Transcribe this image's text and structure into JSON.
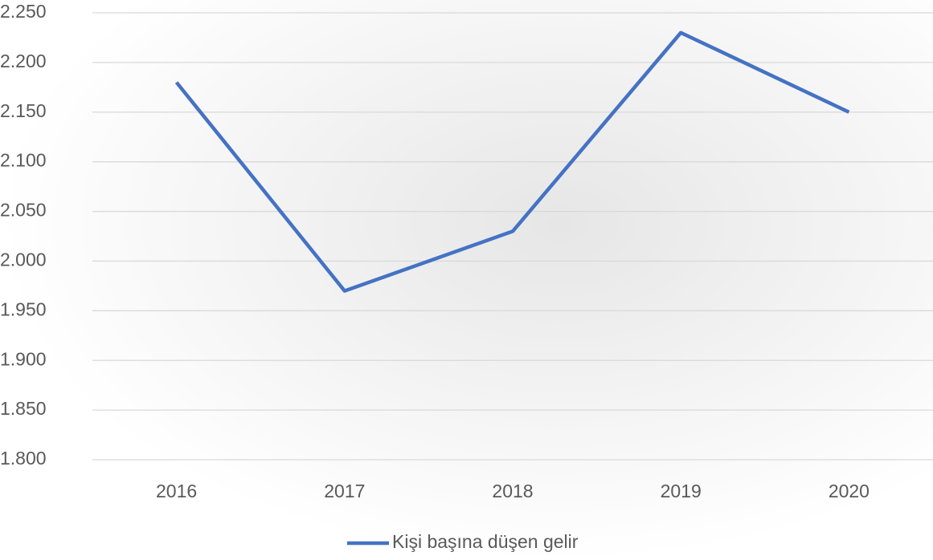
{
  "chart_data": {
    "type": "line",
    "categories": [
      "2016",
      "2017",
      "2018",
      "2019",
      "2020"
    ],
    "series": [
      {
        "name": "Kişi başına düşen gelir",
        "color": "#4472c4",
        "values": [
          2180,
          1970,
          2030,
          2230,
          2150
        ]
      }
    ],
    "ylim": [
      1800,
      2250
    ],
    "yticks": [
      {
        "value": 1800,
        "label": "1.800"
      },
      {
        "value": 1850,
        "label": "1.850"
      },
      {
        "value": 1900,
        "label": "1.900"
      },
      {
        "value": 1950,
        "label": "1.950"
      },
      {
        "value": 2000,
        "label": "2.000"
      },
      {
        "value": 2050,
        "label": "2.050"
      },
      {
        "value": 2100,
        "label": "2.100"
      },
      {
        "value": 2150,
        "label": "2.150"
      },
      {
        "value": 2200,
        "label": "2.200"
      },
      {
        "value": 2250,
        "label": "2.250"
      }
    ],
    "grid": true,
    "legend": "bottom"
  }
}
